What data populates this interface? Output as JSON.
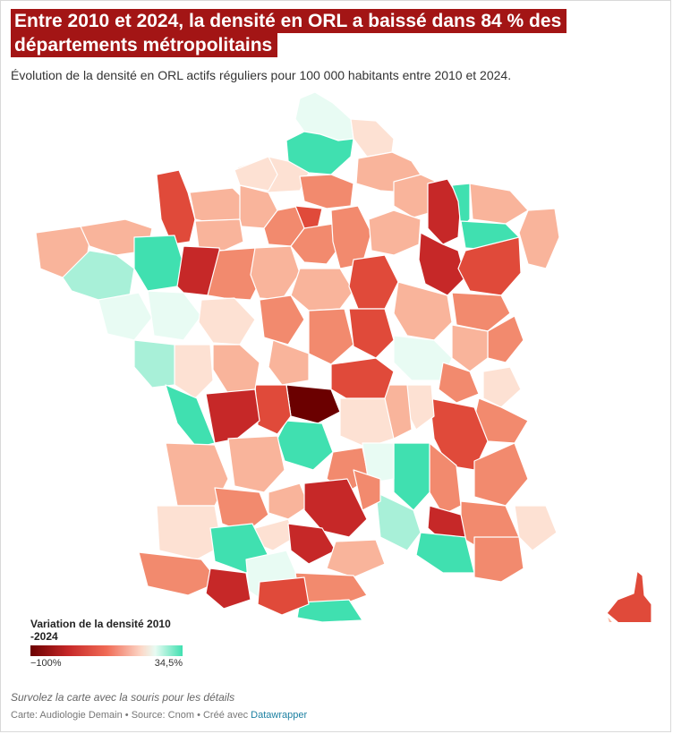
{
  "header": {
    "title": "Entre 2010 et 2024, la densité en ORL a baissé dans 84 % des départements métropolitains",
    "subtitle": "Évolution de la densité en ORL actifs réguliers pour 100 000 habitants entre 2010 et 2024."
  },
  "legend": {
    "title": "Variation de la densité 2010 -2024",
    "min_label": "−100%",
    "max_label": "34,5%",
    "min_value": -100,
    "max_value": 34.5
  },
  "colors": {
    "very_dark_red": "#6b0000",
    "dark_red": "#c62828",
    "red": "#e04a3a",
    "salmon": "#f28a6e",
    "light_salmon": "#f9b49b",
    "pale": "#fde1d3",
    "pale_green": "#e8fbf3",
    "light_green": "#a8f0d8",
    "green": "#40e0b0",
    "background": "#ffffff"
  },
  "footer": {
    "notes": "Survolez la carte avec la souris pour les détails",
    "credit_prefix": "Carte: Audiologie Demain • Source: Cnom • Créé avec ",
    "credit_link": "Datawrapper"
  }
}
